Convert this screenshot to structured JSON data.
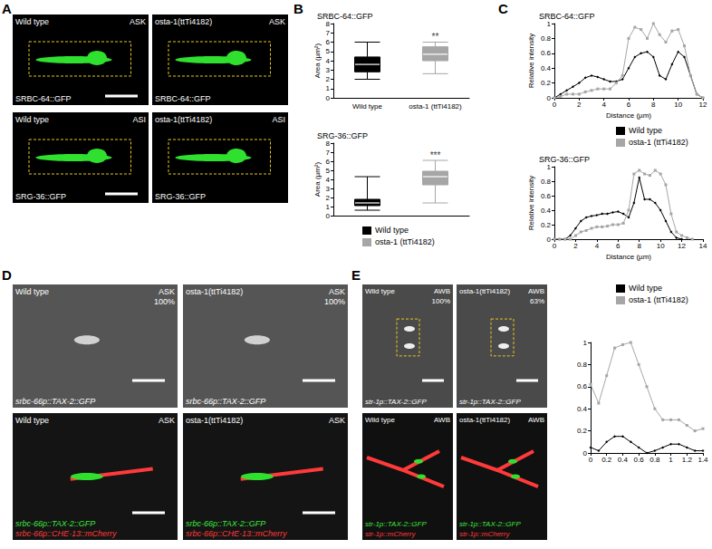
{
  "panels": [
    {
      "label": "A",
      "images": [
        {
          "top_left": "Wild type",
          "top_right": "ASK",
          "bottom_left": "SRBC-64::GFP"
        },
        {
          "top_left": "osta-1(ttTi4182)",
          "top_right": "ASK",
          "bottom_left": "SRBC-64::GFP"
        },
        {
          "top_left": "Wild type",
          "top_right": "ASI",
          "bottom_left": "SRG-36::GFP"
        },
        {
          "top_left": "osta-1(ttTi4182)",
          "top_right": "ASI",
          "bottom_left": "SRG-36::GFP"
        }
      ]
    },
    {
      "label": "B"
    },
    {
      "label": "C"
    },
    {
      "label": "D",
      "images": [
        {
          "top_left": "Wild type",
          "top_right": "ASK",
          "percent": "100%",
          "bottom_lines": [
            {
              "text": "srbc-66p::TAX-2::GFP",
              "color": "#ffffff"
            }
          ]
        },
        {
          "top_left": "osta-1(ttTi4182)",
          "top_right": "ASK",
          "percent": "100%",
          "bottom_lines": [
            {
              "text": "srbc-66p::TAX-2::GFP",
              "color": "#ffffff"
            }
          ]
        },
        {
          "top_left": "Wild type",
          "top_right": "ASK",
          "bottom_lines": [
            {
              "text": "srbc-66p::TAX-2::GFP",
              "color": "#3ee63e"
            },
            {
              "text": "srbc-66p::CHE-13::mCherry",
              "color": "#ff3a3a"
            }
          ]
        },
        {
          "top_left": "osta-1(ttTi4182)",
          "top_right": "ASK",
          "bottom_lines": [
            {
              "text": "srbc-66p::TAX-2::GFP",
              "color": "#3ee63e"
            },
            {
              "text": "srbc-66p::CHE-13::mCherry",
              "color": "#ff3a3a"
            }
          ]
        }
      ]
    },
    {
      "label": "E",
      "images": [
        {
          "top_left": "Wild type",
          "top_right": "AWB",
          "percent": "100%",
          "bottom_lines": [
            {
              "text": "str-1p::TAX-2::GFP",
              "color": "#ffffff"
            }
          ]
        },
        {
          "top_left": "osta-1(ttTi4182)",
          "top_right": "AWB",
          "percent": "63%",
          "bottom_lines": [
            {
              "text": "str-1p::TAX-2::GFP",
              "color": "#ffffff"
            }
          ]
        },
        {
          "top_left": "Wild type",
          "top_right": "AWB",
          "bottom_lines": [
            {
              "text": "str-1p::TAX-2::GFP",
              "color": "#3ee63e"
            },
            {
              "text": "str-1p::mCherry",
              "color": "#ff3a3a"
            }
          ]
        },
        {
          "top_left": "osta-1(ttTi4182)",
          "top_right": "AWB",
          "bottom_lines": [
            {
              "text": "str-1p::TAX-2::GFP",
              "color": "#3ee63e"
            },
            {
              "text": "str-1p::mCherry",
              "color": "#ff3a3a"
            }
          ]
        }
      ]
    }
  ],
  "chart_data": [
    {
      "type": "boxplot",
      "title": "SRBC-64::GFP",
      "y_label": "Area (µm²)",
      "categories": [
        "Wild type",
        "osta-1 (ttTi4182)"
      ],
      "values": [
        [
          2,
          2.8,
          3.6,
          4.4,
          6
        ],
        [
          2.6,
          4.0,
          4.7,
          5.5,
          6
        ]
      ],
      "colors": [
        "#000000",
        "#a6a6a6"
      ],
      "annotations": [
        {
          "category": "osta-1 (ttTi4182)",
          "text": "**"
        }
      ],
      "ylim": [
        0,
        8
      ],
      "yticks": [
        0,
        1,
        2,
        3,
        4,
        5,
        6,
        7,
        8
      ],
      "grid": false
    },
    {
      "type": "boxplot",
      "title": "SRG-36::GFP",
      "y_label": "Area (µm²)",
      "categories": [
        "Wild type",
        "osta-1 (ttTi4182)"
      ],
      "values": [
        [
          0.6,
          1.1,
          1.4,
          1.8,
          4.3
        ],
        [
          1.4,
          3.4,
          4.3,
          4.9,
          6.1
        ]
      ],
      "colors": [
        "#000000",
        "#a6a6a6"
      ],
      "annotations": [
        {
          "category": "osta-1 (ttTi4182)",
          "text": "***"
        }
      ],
      "ylim": [
        0,
        8
      ],
      "yticks": [
        0,
        1,
        2,
        3,
        4,
        5,
        6,
        7,
        8
      ],
      "grid": false,
      "tick_labels": "y",
      "legend": "bottom"
    },
    {
      "type": "line",
      "title": "SRBC-64::GFP",
      "x_label": "Distance (µm)",
      "y_label": "Relative intensity",
      "x": [
        0,
        0.5,
        1,
        1.5,
        2,
        2.5,
        3,
        3.5,
        4,
        4.5,
        5,
        5.5,
        6,
        6.5,
        7,
        7.5,
        8,
        8.5,
        9,
        9.5,
        10,
        10.5,
        11,
        11.5,
        12
      ],
      "series": [
        {
          "name": "Wild type",
          "color": "#000000",
          "marker": "diamond",
          "values": [
            0,
            0.05,
            0.1,
            0.15,
            0.2,
            0.27,
            0.3,
            0.28,
            0.25,
            0.22,
            0.22,
            0.25,
            0.4,
            0.55,
            0.6,
            0.62,
            0.55,
            0.3,
            0.25,
            0.45,
            0.62,
            0.55,
            0.3,
            0.05,
            0
          ]
        },
        {
          "name": "osta-1 (ttTi4182)",
          "color": "#a6a6a6",
          "marker": "square",
          "values": [
            0,
            0.02,
            0.05,
            0.05,
            0.05,
            0.08,
            0.1,
            0.12,
            0.12,
            0.12,
            0.2,
            0.3,
            0.8,
            0.95,
            0.92,
            0.8,
            1,
            0.85,
            0.75,
            0.9,
            0.92,
            0.7,
            0.3,
            0.05,
            0
          ]
        }
      ],
      "xlim": [
        0,
        12
      ],
      "xticks": [
        0,
        2,
        4,
        6,
        8,
        10,
        12
      ],
      "ylim": [
        0,
        1
      ],
      "yticks": [
        0,
        0.2,
        0.4,
        0.6,
        0.8,
        1
      ],
      "grid": false,
      "legend": "bottom right"
    },
    {
      "type": "line",
      "title": "SRG-36::GFP",
      "x_label": "Distance (µm)",
      "y_label": "Relative intensity",
      "x": [
        0,
        0.5,
        1,
        1.5,
        2,
        2.5,
        3,
        3.5,
        4,
        4.5,
        5,
        5.5,
        6,
        6.5,
        7,
        7.5,
        8,
        8.5,
        9,
        9.5,
        10,
        10.5,
        11,
        11.5,
        12,
        12.5,
        13
      ],
      "series": [
        {
          "name": "Wild type",
          "color": "#000000",
          "marker": "diamond",
          "values": [
            0,
            0,
            0,
            0.05,
            0.15,
            0.25,
            0.3,
            0.32,
            0.33,
            0.35,
            0.35,
            0.37,
            0.38,
            0.35,
            0.3,
            0.5,
            0.85,
            0.55,
            0.55,
            0.5,
            0.4,
            0.25,
            0.1,
            0.02,
            0,
            null,
            null
          ]
        },
        {
          "name": "osta-1 (ttTi4182)",
          "color": "#a6a6a6",
          "marker": "square",
          "values": [
            0,
            0,
            0,
            0,
            0.05,
            0.1,
            0.12,
            0.15,
            0.17,
            0.17,
            0.18,
            0.2,
            0.2,
            0.22,
            0.4,
            0.9,
            0.95,
            0.9,
            0.88,
            0.95,
            0.9,
            0.75,
            0.35,
            0.1,
            0.05,
            0.02,
            0
          ]
        }
      ],
      "xlim": [
        0,
        14
      ],
      "xticks": [
        0,
        2,
        4,
        6,
        8,
        10,
        12,
        14
      ],
      "ylim": [
        0,
        1
      ],
      "yticks": [
        0,
        0.2,
        0.4,
        0.6,
        0.8,
        1
      ],
      "grid": false
    },
    {
      "type": "line",
      "x": [
        0,
        0.1,
        0.2,
        0.3,
        0.4,
        0.5,
        0.6,
        0.7,
        0.8,
        0.9,
        1,
        1.1,
        1.2,
        1.3,
        1.4
      ],
      "series": [
        {
          "name": "Wild type",
          "color": "#000000",
          "marker": "diamond",
          "values": [
            0.05,
            0.02,
            0.1,
            0.15,
            0.15,
            0.1,
            0.05,
            0,
            0.02,
            0.05,
            0.08,
            0.08,
            0.05,
            0.02,
            0.02
          ]
        },
        {
          "name": "osta-1 (ttTi4182)",
          "color": "#a6a6a6",
          "marker": "square",
          "values": [
            0.62,
            0.45,
            0.7,
            0.95,
            0.98,
            1,
            0.8,
            0.6,
            0.4,
            0.3,
            0.3,
            0.3,
            0.25,
            0.2,
            0.22
          ]
        }
      ],
      "xlim": [
        0,
        1.4
      ],
      "xticks": [
        0,
        0.2,
        0.4,
        0.6,
        0.8,
        1,
        1.2,
        1.4
      ],
      "ylim": [
        0,
        1
      ],
      "yticks": [
        0,
        0.2,
        0.4,
        0.6,
        0.8,
        1
      ],
      "grid": false,
      "legend": "top right"
    }
  ]
}
